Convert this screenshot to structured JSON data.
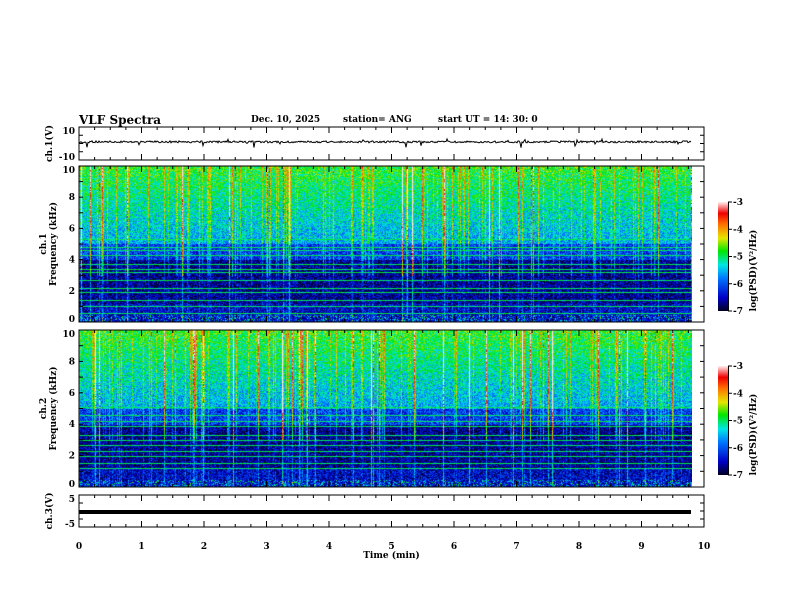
{
  "header": {
    "title": "VLF Spectra",
    "date": "Dec. 10, 2025",
    "station": "station= ANG",
    "start": "start  UT =   14: 30: 0"
  },
  "colors": {
    "axis": "#000000",
    "trace": "#000000"
  },
  "chart_data": [
    {
      "type": "line",
      "name": "ch1-waveform",
      "ylabel": "ch.1(V)",
      "ylim": [
        -10,
        10
      ],
      "yticks": [
        "10",
        "-10"
      ],
      "x_range": [
        0,
        9.8
      ],
      "baseline": 1.0,
      "noise_amplitude": 0.6
    },
    {
      "type": "heatmap",
      "name": "ch1-spectrogram",
      "ylabel": "ch.1\nFrequency (kHz)",
      "ylabel_top": "ch.1",
      "ylabel_bottom": "Frequency (kHz)",
      "ylim": [
        0,
        10
      ],
      "yticks": [
        "0",
        "2",
        "4",
        "6",
        "8",
        "10"
      ],
      "x_range": [
        0,
        9.8
      ],
      "colorbar": {
        "label": "log(PSD)(V²/Hz)",
        "range": [
          -7,
          -3
        ],
        "ticks": [
          "-3",
          "-4",
          "-5",
          "-6",
          "-7"
        ]
      },
      "narrowband_lines_khz": [
        0.6,
        1.0,
        1.4,
        1.9,
        2.2,
        2.7,
        3.2,
        3.4,
        3.7,
        4.3,
        4.6,
        4.8,
        5.3
      ],
      "seed": 7
    },
    {
      "type": "heatmap",
      "name": "ch2-spectrogram",
      "ylabel_top": "ch.2",
      "ylabel_bottom": "Frequency (kHz)",
      "ylim": [
        0,
        10
      ],
      "yticks": [
        "0",
        "2",
        "4",
        "6",
        "8",
        "10"
      ],
      "x_range": [
        0,
        9.8
      ],
      "colorbar": {
        "label": "log(PSD)(V²/Hz)",
        "range": [
          -7,
          -3
        ],
        "ticks": [
          "-3",
          "-4",
          "-5",
          "-6",
          "-7"
        ]
      },
      "narrowband_lines_khz": [
        1.2,
        1.5,
        2.0,
        2.3,
        2.7,
        3.0,
        3.3,
        3.9,
        4.2,
        4.6,
        5.1
      ],
      "seed": 13
    },
    {
      "type": "line",
      "name": "ch3-waveform",
      "ylabel": "ch.3(V)",
      "ylim": [
        -5,
        5
      ],
      "yticks": [
        "5",
        "-5"
      ],
      "x_range": [
        0,
        9.8
      ],
      "baseline": -0.3,
      "noise_amplitude": 0
    }
  ],
  "xaxis": {
    "label": "Time (min)",
    "range": [
      0,
      10
    ],
    "ticks": [
      "0",
      "1",
      "2",
      "3",
      "4",
      "5",
      "6",
      "7",
      "8",
      "9",
      "10"
    ]
  }
}
